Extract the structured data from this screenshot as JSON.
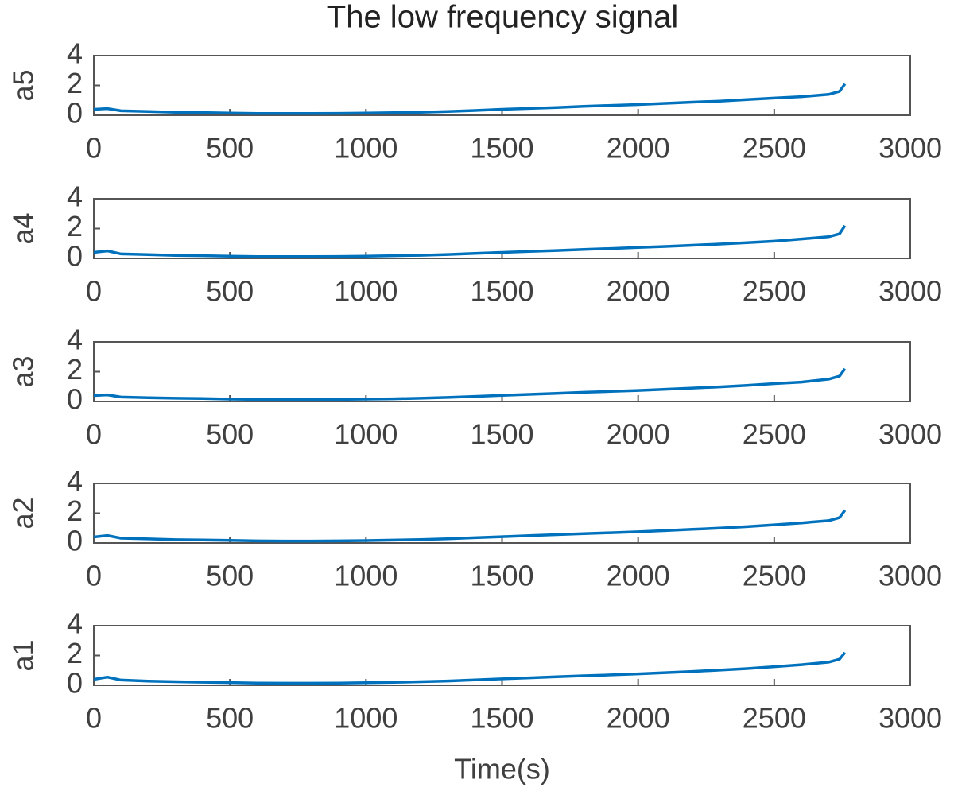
{
  "chart_data": [
    {
      "type": "line",
      "title": "The low frequency signal",
      "ylabel": "a5",
      "x": [
        0,
        50,
        100,
        200,
        300,
        400,
        500,
        600,
        700,
        800,
        900,
        1000,
        1100,
        1200,
        1300,
        1400,
        1500,
        1600,
        1700,
        1800,
        1900,
        2000,
        2100,
        2200,
        2300,
        2400,
        2500,
        2600,
        2700,
        2740,
        2760
      ],
      "series": [
        {
          "color": "#0072bd",
          "values": [
            0.4,
            0.45,
            0.3,
            0.25,
            0.2,
            0.18,
            0.15,
            0.12,
            0.12,
            0.12,
            0.13,
            0.15,
            0.17,
            0.2,
            0.25,
            0.32,
            0.4,
            0.46,
            0.52,
            0.6,
            0.66,
            0.72,
            0.8,
            0.88,
            0.95,
            1.05,
            1.15,
            1.25,
            1.4,
            1.6,
            2.1
          ]
        }
      ],
      "xlim": [
        0,
        3000
      ],
      "xticks": [
        0,
        500,
        1000,
        1500,
        2000,
        2500,
        3000
      ],
      "ylim": [
        0,
        4
      ],
      "yticks": [
        0,
        2,
        4
      ]
    },
    {
      "type": "line",
      "ylabel": "a4",
      "x": [
        0,
        50,
        100,
        200,
        300,
        400,
        500,
        600,
        700,
        800,
        900,
        1000,
        1100,
        1200,
        1300,
        1400,
        1500,
        1600,
        1700,
        1800,
        1900,
        2000,
        2100,
        2200,
        2300,
        2400,
        2500,
        2600,
        2700,
        2740,
        2760
      ],
      "series": [
        {
          "color": "#0072bd",
          "values": [
            0.4,
            0.5,
            0.3,
            0.25,
            0.2,
            0.18,
            0.15,
            0.12,
            0.12,
            0.12,
            0.13,
            0.15,
            0.18,
            0.21,
            0.26,
            0.33,
            0.4,
            0.47,
            0.53,
            0.6,
            0.66,
            0.73,
            0.8,
            0.88,
            0.96,
            1.05,
            1.15,
            1.3,
            1.45,
            1.65,
            2.2
          ]
        }
      ],
      "xlim": [
        0,
        3000
      ],
      "xticks": [
        0,
        500,
        1000,
        1500,
        2000,
        2500,
        3000
      ],
      "ylim": [
        0,
        4
      ],
      "yticks": [
        0,
        2,
        4
      ]
    },
    {
      "type": "line",
      "ylabel": "a3",
      "x": [
        0,
        50,
        100,
        200,
        300,
        400,
        500,
        600,
        700,
        800,
        900,
        1000,
        1100,
        1200,
        1300,
        1400,
        1500,
        1600,
        1700,
        1800,
        1900,
        2000,
        2100,
        2200,
        2300,
        2400,
        2500,
        2600,
        2700,
        2740,
        2760
      ],
      "series": [
        {
          "color": "#0072bd",
          "values": [
            0.4,
            0.45,
            0.3,
            0.25,
            0.22,
            0.2,
            0.16,
            0.14,
            0.13,
            0.13,
            0.14,
            0.16,
            0.18,
            0.22,
            0.27,
            0.34,
            0.41,
            0.48,
            0.55,
            0.62,
            0.68,
            0.74,
            0.82,
            0.9,
            0.98,
            1.08,
            1.2,
            1.3,
            1.5,
            1.7,
            2.2
          ]
        }
      ],
      "xlim": [
        0,
        3000
      ],
      "xticks": [
        0,
        500,
        1000,
        1500,
        2000,
        2500,
        3000
      ],
      "ylim": [
        0,
        4
      ],
      "yticks": [
        0,
        2,
        4
      ]
    },
    {
      "type": "line",
      "ylabel": "a2",
      "x": [
        0,
        50,
        100,
        200,
        300,
        400,
        500,
        600,
        700,
        800,
        900,
        1000,
        1100,
        1200,
        1300,
        1400,
        1500,
        1600,
        1700,
        1800,
        1900,
        2000,
        2100,
        2200,
        2300,
        2400,
        2500,
        2600,
        2700,
        2740,
        2760
      ],
      "series": [
        {
          "color": "#0072bd",
          "values": [
            0.4,
            0.5,
            0.32,
            0.27,
            0.22,
            0.2,
            0.17,
            0.14,
            0.13,
            0.13,
            0.14,
            0.16,
            0.19,
            0.23,
            0.28,
            0.35,
            0.42,
            0.49,
            0.56,
            0.63,
            0.69,
            0.75,
            0.83,
            0.92,
            1.0,
            1.1,
            1.22,
            1.35,
            1.5,
            1.7,
            2.2
          ]
        }
      ],
      "xlim": [
        0,
        3000
      ],
      "xticks": [
        0,
        500,
        1000,
        1500,
        2000,
        2500,
        3000
      ],
      "ylim": [
        0,
        4
      ],
      "yticks": [
        0,
        2,
        4
      ]
    },
    {
      "type": "line",
      "ylabel": "a1",
      "xlabel": "Time(s)",
      "x": [
        0,
        50,
        100,
        200,
        300,
        400,
        500,
        600,
        700,
        800,
        900,
        1000,
        1100,
        1200,
        1300,
        1400,
        1500,
        1600,
        1700,
        1800,
        1900,
        2000,
        2100,
        2200,
        2300,
        2400,
        2500,
        2600,
        2700,
        2740,
        2760
      ],
      "series": [
        {
          "color": "#0072bd",
          "values": [
            0.4,
            0.55,
            0.35,
            0.28,
            0.24,
            0.21,
            0.18,
            0.15,
            0.14,
            0.14,
            0.15,
            0.17,
            0.2,
            0.24,
            0.29,
            0.36,
            0.43,
            0.5,
            0.57,
            0.64,
            0.7,
            0.77,
            0.85,
            0.93,
            1.02,
            1.12,
            1.25,
            1.38,
            1.55,
            1.75,
            2.2
          ]
        }
      ],
      "xlim": [
        0,
        3000
      ],
      "xticks": [
        0,
        500,
        1000,
        1500,
        2000,
        2500,
        3000
      ],
      "ylim": [
        0,
        4
      ],
      "yticks": [
        0,
        2,
        4
      ]
    }
  ]
}
